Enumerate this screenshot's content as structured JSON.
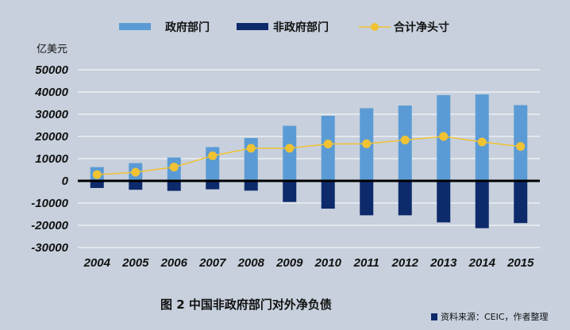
{
  "chart_data": {
    "type": "bar+line",
    "unit": "亿美元",
    "categories": [
      "2004",
      "2005",
      "2006",
      "2007",
      "2008",
      "2009",
      "2010",
      "2011",
      "2012",
      "2013",
      "2014",
      "2015"
    ],
    "series": [
      {
        "name": "政府部门",
        "type": "bar",
        "color": "#5b9bd5",
        "values": [
          6200,
          8000,
          10500,
          15200,
          19300,
          24800,
          29300,
          32700,
          33900,
          38600,
          38900,
          34100
        ]
      },
      {
        "name": "非政府部门",
        "type": "bar",
        "color": "#0d2a6b",
        "values": [
          -3200,
          -4000,
          -4500,
          -3800,
          -4400,
          -9500,
          -12500,
          -15500,
          -15500,
          -18700,
          -21300,
          -19000
        ]
      },
      {
        "name": "合计净头寸",
        "type": "line",
        "color": "#f1c232",
        "values": [
          2800,
          3900,
          6200,
          11300,
          14700,
          14700,
          16600,
          16700,
          18400,
          20000,
          17500,
          15500
        ]
      }
    ],
    "ylim": [
      -30000,
      50000
    ],
    "yticks": [
      50000,
      40000,
      30000,
      20000,
      10000,
      0,
      -10000,
      -20000,
      -30000
    ],
    "grid": true,
    "legend_position": "top"
  },
  "caption": "图 2 中国非政府部门对外净负债",
  "source": "资料来源：CEIC，作者整理"
}
